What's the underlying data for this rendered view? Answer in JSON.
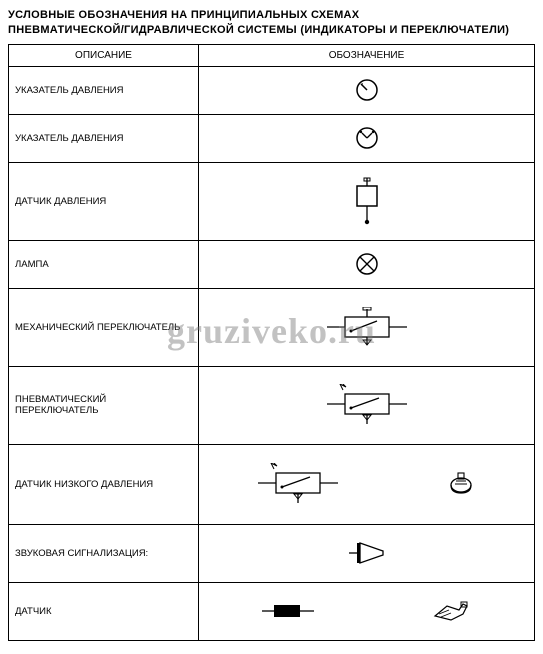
{
  "title_line1": "УСЛОВНЫЕ ОБОЗНАЧЕНИЯ НА ПРИНЦИПИАЛЬНЫХ СХЕМАХ",
  "title_line2": "ПНЕВМАТИЧЕСКОЙ/ГИДРАВЛИЧЕСКОЙ СИСТЕМЫ (ИНДИКАТОРЫ И ПЕРЕКЛЮЧАТЕЛИ)",
  "headers": {
    "col1": "ОПИСАНИЕ",
    "col2": "ОБОЗНАЧЕНИЕ"
  },
  "rows": [
    {
      "desc": "УКАЗАТЕЛЬ ДАВЛЕНИЯ",
      "symbol": "gauge1",
      "height": 48
    },
    {
      "desc": "УКАЗАТЕЛЬ ДАВЛЕНИЯ",
      "symbol": "gauge2",
      "height": 48
    },
    {
      "desc": "ДАТЧИК ДАВЛЕНИЯ",
      "symbol": "pressure-sensor",
      "height": 78
    },
    {
      "desc": "ЛАМПА",
      "symbol": "lamp",
      "height": 48
    },
    {
      "desc": "МЕХАНИЧЕСКИЙ ПЕРЕКЛЮЧАТЕЛЬ",
      "symbol": "mech-switch",
      "height": 78
    },
    {
      "desc": "ПНЕВМАТИЧЕСКИЙ ПЕРЕКЛЮЧАТЕЛЬ",
      "symbol": "pneu-switch",
      "height": 78
    },
    {
      "desc": "ДАТЧИК НИЗКОГО ДАВЛЕНИЯ",
      "symbol": "low-pressure-pair",
      "height": 80
    },
    {
      "desc": "ЗВУКОВАЯ СИГНАЛИЗАЦИЯ:",
      "symbol": "sound",
      "height": 58
    },
    {
      "desc": "ДАТЧИК",
      "symbol": "sensor-pair",
      "height": 58
    }
  ],
  "watermark": "gruziveko.ru",
  "colors": {
    "line": "#000000",
    "fill": "#000000",
    "bg": "#ffffff"
  }
}
